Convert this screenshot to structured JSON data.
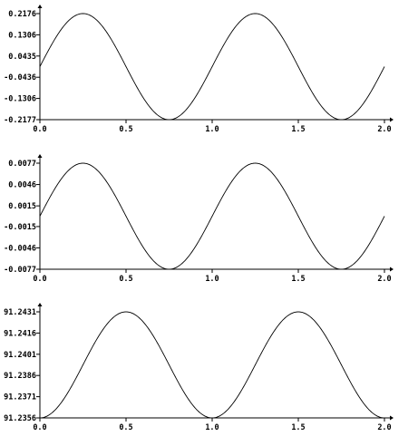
{
  "chart_data": [
    {
      "type": "line",
      "xlim": [
        0,
        2
      ],
      "ylim": [
        -0.2177,
        0.2176
      ],
      "x_ticks": [
        "0.0",
        "0.5",
        "1.0",
        "1.5",
        "2.0"
      ],
      "y_ticks": [
        "0.2176",
        "0.1306",
        "0.0435",
        "-0.0436",
        "-0.1306",
        "-0.2177"
      ],
      "series": [
        {
          "function": "amplitude * sin(2*pi*x)",
          "amplitude": 0.2177,
          "offset": 0,
          "x": [
            0,
            0.25,
            0.5,
            0.75,
            1.0,
            1.25,
            1.5,
            1.75,
            2.0
          ],
          "y": [
            0,
            0.2176,
            0,
            -0.2177,
            0,
            0.2176,
            0,
            -0.2177,
            0
          ]
        }
      ],
      "grid": false
    },
    {
      "type": "line",
      "xlim": [
        0,
        2
      ],
      "ylim": [
        -0.0077,
        0.0077
      ],
      "x_ticks": [
        "0.0",
        "0.5",
        "1.0",
        "1.5",
        "2.0"
      ],
      "y_ticks": [
        "0.0077",
        "0.0046",
        "0.0015",
        "-0.0015",
        "-0.0046",
        "-0.0077"
      ],
      "series": [
        {
          "function": "amplitude * sin(2*pi*x)",
          "amplitude": 0.0077,
          "offset": 0,
          "x": [
            0,
            0.25,
            0.5,
            0.75,
            1.0,
            1.25,
            1.5,
            1.75,
            2.0
          ],
          "y": [
            0,
            0.0077,
            0,
            -0.0077,
            0,
            0.0077,
            0,
            -0.0077,
            0
          ]
        }
      ],
      "grid": false
    },
    {
      "type": "line",
      "xlim": [
        0,
        2
      ],
      "ylim": [
        91.2356,
        91.2431
      ],
      "x_ticks": [
        "0.0",
        "0.5",
        "1.0",
        "1.5",
        "2.0"
      ],
      "y_ticks": [
        "91.2431",
        "91.2416",
        "91.2401",
        "91.2386",
        "91.2371",
        "91.2356"
      ],
      "series": [
        {
          "function": "center - amplitude * cos(2*pi*x)",
          "center": 91.23935,
          "amplitude": 0.00375,
          "x": [
            0,
            0.25,
            0.5,
            0.75,
            1.0,
            1.25,
            1.5,
            1.75,
            2.0
          ],
          "y": [
            91.2356,
            91.23935,
            91.2431,
            91.23935,
            91.2356,
            91.23935,
            91.2431,
            91.23935,
            91.2356
          ]
        }
      ],
      "grid": false
    }
  ]
}
